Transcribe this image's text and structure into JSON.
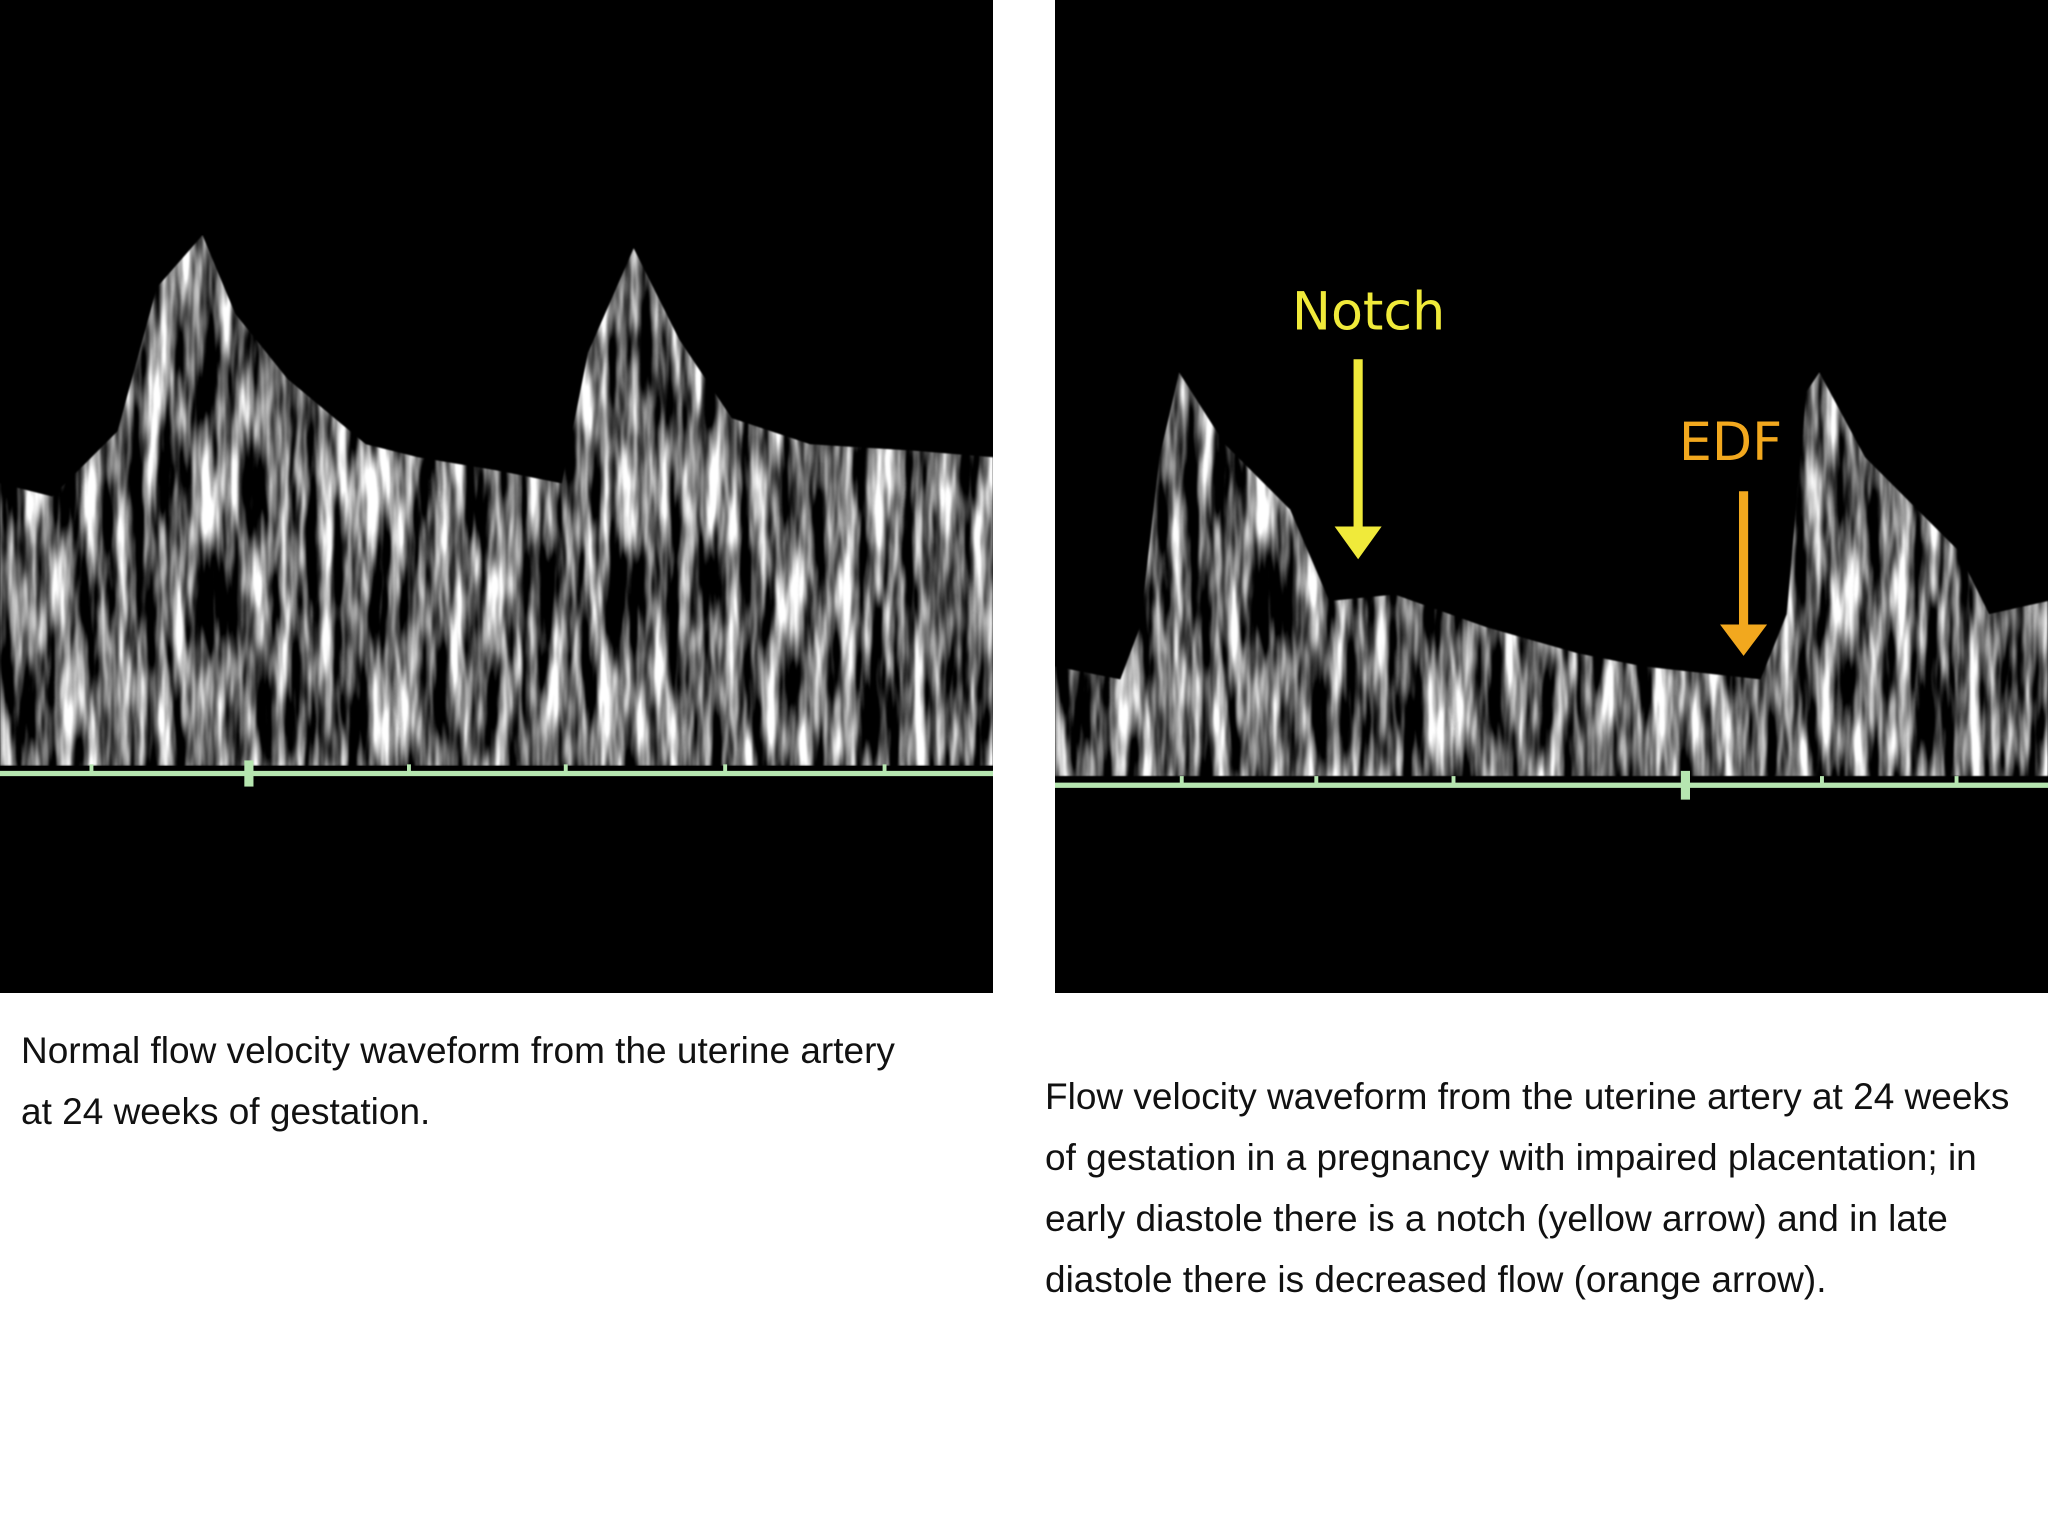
{
  "panels": [
    {
      "caption": "Normal flow velocity waveform from the uterine artery at 24 weeks of gestation."
    },
    {
      "annotations": [
        {
          "label": "Notch"
        },
        {
          "label": "EDF"
        }
      ],
      "caption": "Flow velocity waveform from the uterine artery at 24 weeks of gestation in a pregnancy with impaired placentation; in early diastole there is a notch (yellow arrow) and in late diastole there is decreased flow (orange arrow)."
    }
  ]
}
